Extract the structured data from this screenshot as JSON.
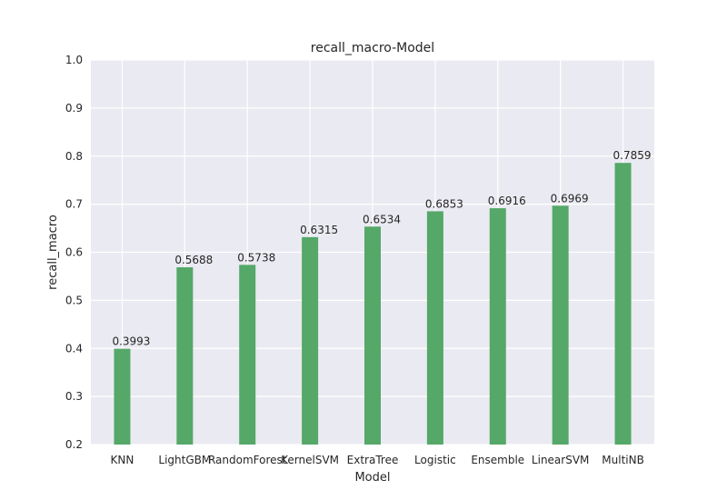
{
  "chart_data": {
    "type": "bar",
    "title": "recall_macro-Model",
    "xlabel": "Model",
    "ylabel": "recall_macro",
    "categories": [
      "KNN",
      "LightGBM",
      "RandomForest",
      "KernelSVM",
      "ExtraTree",
      "Logistic",
      "Ensemble",
      "LinearSVM",
      "MultiNB"
    ],
    "values": [
      0.3993,
      0.5688,
      0.5738,
      0.6315,
      0.6534,
      0.6853,
      0.6916,
      0.6969,
      0.7859
    ],
    "data_labels": [
      "0.3993",
      "0.5688",
      "0.5738",
      "0.6315",
      "0.6534",
      "0.6853",
      "0.6916",
      "0.6969",
      "0.7859"
    ],
    "ylim": [
      0.2,
      1.0
    ],
    "yticks": [
      "0.2",
      "0.3",
      "0.4",
      "0.5",
      "0.6",
      "0.7",
      "0.8",
      "0.9",
      "1.0"
    ],
    "grid": true,
    "bar_color": "#55a868",
    "background_color": "#eaeaf2",
    "grid_color": "#ffffff"
  }
}
